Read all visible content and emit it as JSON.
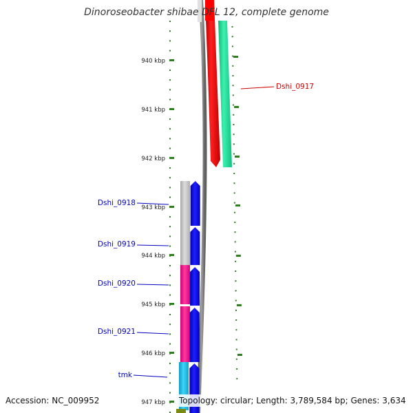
{
  "title": "Dinoroseobacter shibae DFL 12, complete genome",
  "accession": "Accession: NC_009952",
  "summary": "Topology: circular; Length: 3,789,584 bp; Genes: 3,634",
  "scale": {
    "unit_label": "kbp",
    "ticks": [
      "940 kbp",
      "941 kbp",
      "942 kbp",
      "943 kbp",
      "944 kbp",
      "945 kbp",
      "946 kbp",
      "947 kbp"
    ]
  },
  "colors": {
    "ruler": "#2e7d1f",
    "backbone": "#808080",
    "gene_red": "#ff0000",
    "gene_green": "#22e39a",
    "gene_grey": "#c8c8c8",
    "gene_pink": "#ff1a8c",
    "gene_cyan": "#19c3ee",
    "gene_blue": "#0000ff",
    "label_red": "#d00000",
    "label_blue": "#0000c0"
  },
  "genes": [
    {
      "name": "Dshi_0917",
      "strand": "right",
      "label_color": "label_red"
    },
    {
      "name": "Dshi_0918",
      "strand": "left",
      "label_color": "label_blue"
    },
    {
      "name": "Dshi_0919",
      "strand": "left",
      "label_color": "label_blue"
    },
    {
      "name": "Dshi_0920",
      "strand": "left",
      "label_color": "label_blue"
    },
    {
      "name": "Dshi_0921",
      "strand": "left",
      "label_color": "label_blue"
    },
    {
      "name": "tmk",
      "strand": "left",
      "label_color": "label_blue"
    }
  ]
}
